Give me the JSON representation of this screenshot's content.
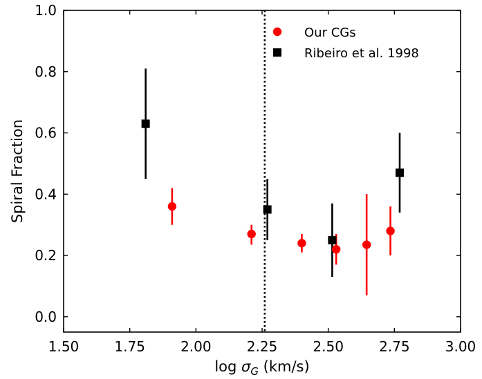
{
  "chart_data": {
    "type": "scatter",
    "xlabel_prefix": "log ",
    "xlabel_symbol": "σ",
    "xlabel_subscript": "G",
    "xlabel_suffix": " (km/s)",
    "ylabel": "Spiral Fraction",
    "xlim": [
      1.5,
      3.0
    ],
    "ylim": [
      -0.05,
      1.0
    ],
    "xticks": [
      1.5,
      1.75,
      2.0,
      2.25,
      2.5,
      2.75,
      3.0
    ],
    "xtick_labels": [
      "1.50",
      "1.75",
      "2.00",
      "2.25",
      "2.50",
      "2.75",
      "3.00"
    ],
    "yticks": [
      0.0,
      0.2,
      0.4,
      0.6,
      0.8,
      1.0
    ],
    "ytick_labels": [
      "0.0",
      "0.2",
      "0.4",
      "0.6",
      "0.8",
      "1.0"
    ],
    "grid": false,
    "legend_position": "top-center",
    "vline": {
      "x": 2.26,
      "style": "dotted",
      "color": "#000000"
    },
    "series": [
      {
        "name": "Our CGs",
        "marker": "circle",
        "color": "#ff0000",
        "points": [
          {
            "x": 1.91,
            "y": 0.36,
            "ylow": 0.3,
            "yhigh": 0.42
          },
          {
            "x": 2.21,
            "y": 0.27,
            "ylow": 0.235,
            "yhigh": 0.3
          },
          {
            "x": 2.4,
            "y": 0.24,
            "ylow": 0.21,
            "yhigh": 0.27
          },
          {
            "x": 2.53,
            "y": 0.22,
            "ylow": 0.17,
            "yhigh": 0.27
          },
          {
            "x": 2.645,
            "y": 0.235,
            "ylow": 0.07,
            "yhigh": 0.4
          },
          {
            "x": 2.735,
            "y": 0.28,
            "ylow": 0.2,
            "yhigh": 0.36
          }
        ]
      },
      {
        "name": "Ribeiro et al. 1998",
        "marker": "square",
        "color": "#000000",
        "points": [
          {
            "x": 1.81,
            "y": 0.63,
            "ylow": 0.45,
            "yhigh": 0.81
          },
          {
            "x": 2.27,
            "y": 0.35,
            "ylow": 0.25,
            "yhigh": 0.45
          },
          {
            "x": 2.515,
            "y": 0.25,
            "ylow": 0.13,
            "yhigh": 0.37
          },
          {
            "x": 2.77,
            "y": 0.47,
            "ylow": 0.34,
            "yhigh": 0.6
          }
        ]
      }
    ]
  }
}
